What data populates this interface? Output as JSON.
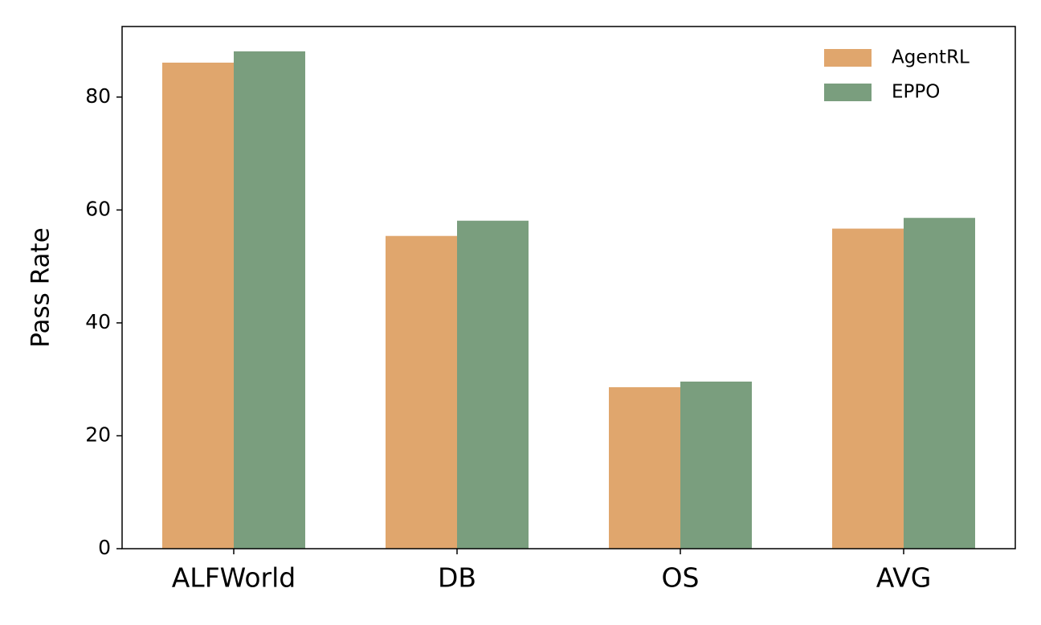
{
  "chart_data": {
    "type": "bar",
    "y_label": "Pass Rate",
    "categories": [
      "ALFWorld",
      "DB",
      "OS",
      "AVG"
    ],
    "series": [
      {
        "name": "AgentRL",
        "color": "#e0a66d",
        "values": [
          86.1,
          55.4,
          28.6,
          56.7
        ]
      },
      {
        "name": "EPPO",
        "color": "#7a9e7e",
        "values": [
          88.1,
          58.1,
          29.6,
          58.6
        ]
      }
    ],
    "ylim": [
      0,
      92.5
    ],
    "yticks": [
      0,
      20,
      40,
      60,
      80
    ],
    "grid": false,
    "legend": "upper right"
  }
}
